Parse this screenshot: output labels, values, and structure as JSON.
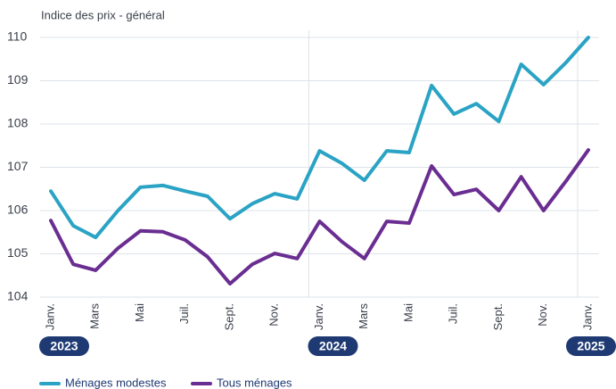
{
  "chart_data": {
    "type": "line",
    "title": "Indice des prix - général",
    "categories": [
      "Janv.",
      null,
      "Mars",
      null,
      "Mai",
      null,
      "Juil.",
      null,
      "Sept.",
      null,
      "Nov.",
      null,
      "Janv.",
      null,
      "Mars",
      null,
      "Mai",
      null,
      "Juil.",
      null,
      "Sept.",
      null,
      "Nov.",
      null,
      "Janv."
    ],
    "years": [
      {
        "index": 0,
        "label": "2023"
      },
      {
        "index": 12,
        "label": "2024"
      },
      {
        "index": 24,
        "label": "2025"
      }
    ],
    "series": [
      {
        "name": "Ménages modestes",
        "color": "#2aa3c4",
        "values": [
          106.45,
          105.65,
          105.38,
          106.0,
          106.54,
          106.58,
          106.45,
          106.33,
          105.81,
          106.16,
          106.39,
          106.27,
          107.38,
          107.09,
          106.7,
          107.38,
          107.34,
          108.89,
          108.23,
          108.47,
          108.06,
          109.38,
          108.91,
          109.42,
          110.0
        ]
      },
      {
        "name": "Tous ménages",
        "color": "#6a2d91",
        "values": [
          105.77,
          104.76,
          104.62,
          105.13,
          105.53,
          105.51,
          105.32,
          104.93,
          104.31,
          104.76,
          105.01,
          104.89,
          105.75,
          105.28,
          104.89,
          105.75,
          105.71,
          107.03,
          106.37,
          106.49,
          106.0,
          106.78,
          106.0,
          106.68,
          107.4
        ]
      }
    ],
    "ylim": [
      104,
      110
    ],
    "yticks": [
      104,
      105,
      106,
      107,
      108,
      109,
      110
    ],
    "grid": true
  }
}
